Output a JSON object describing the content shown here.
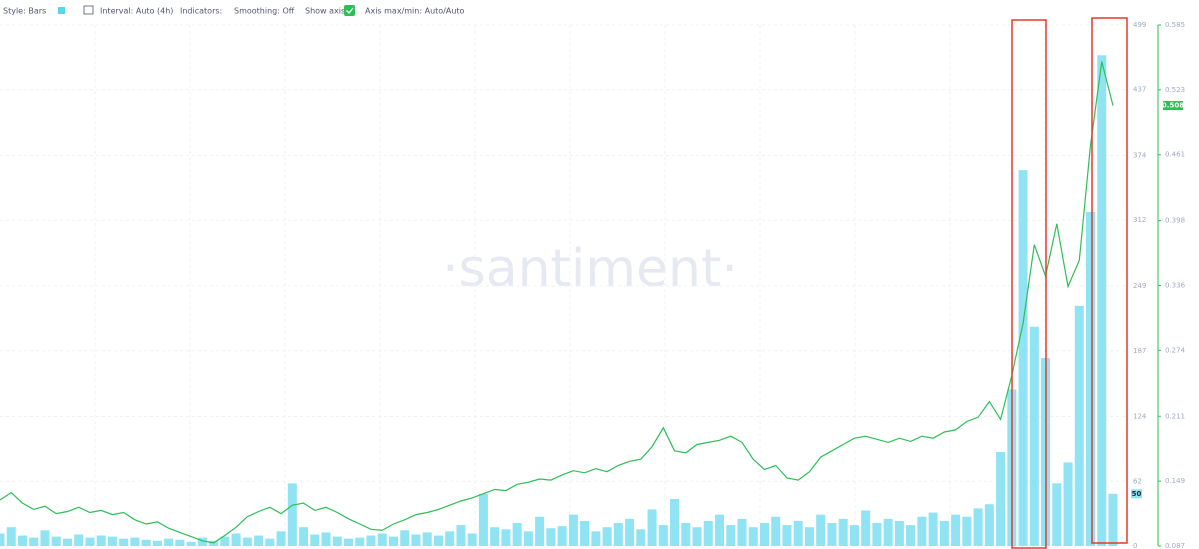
{
  "toolbar": {
    "style": "Style: Bars",
    "interval": "Interval: Auto (4h)",
    "indicators": "Indicators:",
    "smoothing": "Smoothing: Off",
    "show_axis": "Show axis",
    "axis_minmax": "Axis max/min: Auto/Auto"
  },
  "watermark": "·santiment·",
  "chart_data": {
    "type": "combo",
    "grid": true,
    "ylim": [
      0,
      499
    ],
    "yticks": [
      0,
      62,
      124,
      187,
      249,
      312,
      374,
      437,
      499
    ],
    "y2lim": [
      0.087,
      0.585
    ],
    "y2ticks": [
      0.087,
      0.149,
      0.211,
      0.274,
      0.336,
      0.398,
      0.461,
      0.523,
      0.585
    ],
    "series": [
      {
        "type": "bar",
        "color": "#8fe3f2",
        "values": [
          12,
          18,
          10,
          8,
          15,
          9,
          7,
          11,
          8,
          10,
          9,
          7,
          8,
          6,
          5,
          7,
          6,
          4,
          8,
          5,
          9,
          12,
          8,
          10,
          7,
          14,
          60,
          18,
          11,
          13,
          9,
          7,
          8,
          10,
          12,
          9,
          15,
          11,
          13,
          10,
          14,
          20,
          12,
          50,
          18,
          16,
          22,
          14,
          28,
          17,
          19,
          30,
          24,
          14,
          18,
          22,
          26,
          16,
          35,
          20,
          45,
          22,
          18,
          24,
          30,
          20,
          26,
          18,
          22,
          28,
          20,
          24,
          18,
          30,
          22,
          26,
          20,
          34,
          22,
          26,
          24,
          20,
          28,
          32,
          24,
          30,
          28,
          36,
          40,
          90,
          150,
          360,
          210,
          180,
          60,
          80,
          230,
          320,
          470,
          50
        ]
      },
      {
        "type": "line",
        "axis": "y2",
        "color": "#2dbf55",
        "values": [
          0.131,
          0.138,
          0.128,
          0.122,
          0.125,
          0.118,
          0.12,
          0.124,
          0.119,
          0.121,
          0.117,
          0.119,
          0.112,
          0.108,
          0.11,
          0.104,
          0.1,
          0.096,
          0.092,
          0.09,
          0.097,
          0.105,
          0.115,
          0.12,
          0.124,
          0.118,
          0.126,
          0.128,
          0.121,
          0.124,
          0.119,
          0.113,
          0.108,
          0.103,
          0.102,
          0.108,
          0.112,
          0.117,
          0.119,
          0.122,
          0.126,
          0.13,
          0.133,
          0.137,
          0.141,
          0.14,
          0.146,
          0.148,
          0.151,
          0.15,
          0.155,
          0.159,
          0.157,
          0.161,
          0.158,
          0.164,
          0.168,
          0.17,
          0.182,
          0.2,
          0.178,
          0.176,
          0.184,
          0.186,
          0.188,
          0.192,
          0.186,
          0.17,
          0.16,
          0.164,
          0.152,
          0.15,
          0.158,
          0.172,
          0.178,
          0.184,
          0.19,
          0.192,
          0.189,
          0.186,
          0.19,
          0.187,
          0.192,
          0.19,
          0.196,
          0.198,
          0.206,
          0.21,
          0.225,
          0.208,
          0.25,
          0.3,
          0.375,
          0.345,
          0.395,
          0.335,
          0.36,
          0.47,
          0.55,
          0.508
        ]
      }
    ]
  }
}
